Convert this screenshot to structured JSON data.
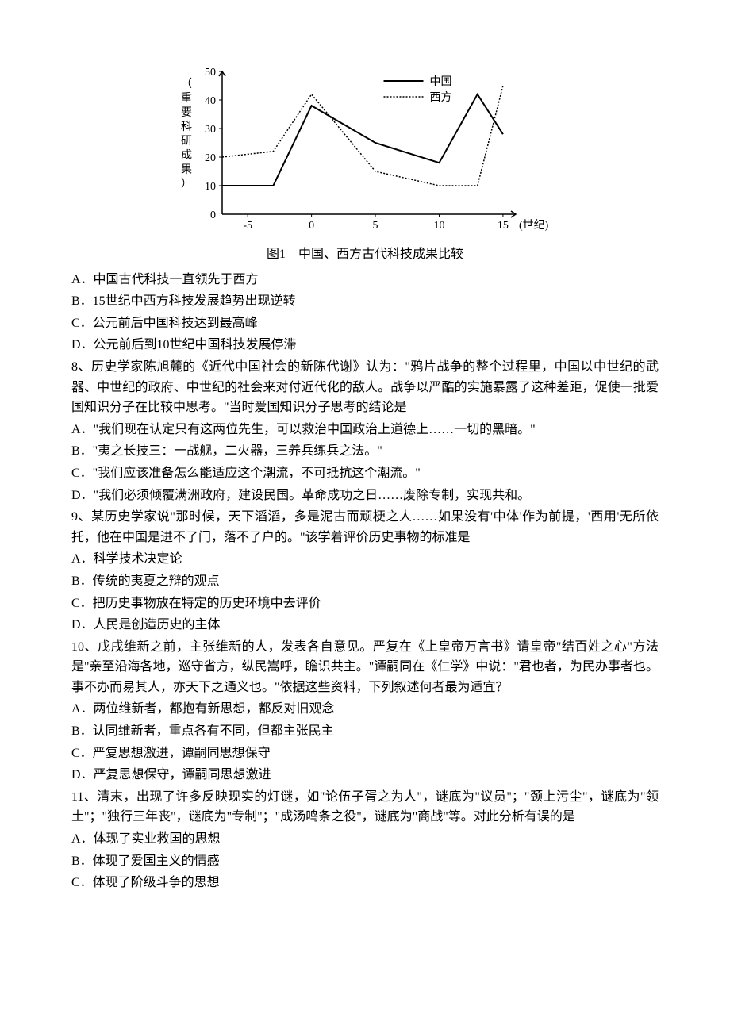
{
  "chart": {
    "type": "line",
    "axis_label_x": "(世纪)",
    "axis_label_y": "（重要科研成果）",
    "legend": [
      "中国",
      "西方"
    ],
    "x_ticks": [
      -5,
      0,
      5,
      10,
      15
    ],
    "y_ticks": [
      0,
      10,
      20,
      30,
      40,
      50
    ],
    "series": {
      "china": {
        "label": "中国",
        "points": [
          [
            -7,
            10
          ],
          [
            -3,
            10
          ],
          [
            0,
            38
          ],
          [
            5,
            25
          ],
          [
            10,
            18
          ],
          [
            13,
            42
          ],
          [
            15,
            28
          ]
        ],
        "color": "#000",
        "dash": "none",
        "width": 2
      },
      "west": {
        "label": "西方",
        "points": [
          [
            -7,
            20
          ],
          [
            -3,
            22
          ],
          [
            0,
            42
          ],
          [
            5,
            15
          ],
          [
            10,
            10
          ],
          [
            13,
            10
          ],
          [
            15,
            45
          ]
        ],
        "color": "#000",
        "dash": "2,2",
        "width": 1.5
      }
    },
    "xlim": [
      -7,
      16
    ],
    "ylim": [
      0,
      50
    ],
    "grid_color": "#000",
    "background_color": "#ffffff",
    "font_size_axis": 14,
    "caption": "图1　中国、西方古代科技成果比较"
  },
  "q7": {
    "opts": {
      "A": "A．中国古代科技一直领先于西方",
      "B": "B．15世纪中西方科技发展趋势出现逆转",
      "C": "C．公元前后中国科技达到最高峰",
      "D": "D．公元前后到10世纪中国科技发展停滞"
    }
  },
  "q8": {
    "stem": "8、历史学家陈旭麓的《近代中国社会的新陈代谢》认为：\"鸦片战争的整个过程里，中国以中世纪的武器、中世纪的政府、中世纪的社会来对付近代化的敌人。战争以严酷的实施暴露了这种差距，促使一批爱国知识分子在比较中思考。\"当时爱国知识分子思考的结论是",
    "opts": {
      "A": "A．\"我们现在认定只有这两位先生，可以救治中国政治上道德上……一切的黑暗。\"",
      "B": "B．\"夷之长技三：一战舰，二火器，三养兵练兵之法。\"",
      "C": "C．\"我们应该准备怎么能适应这个潮流，不可抵抗这个潮流。\"",
      "D": "D．\"我们必须倾覆满洲政府，建设民国。革命成功之日……废除专制，实现共和。"
    }
  },
  "q9": {
    "stem": "9、某历史学家说\"那时候，天下滔滔，多是泥古而顽梗之人……如果没有'中体'作为前提，'西用'无所依托，他在中国是进不了门，落不了户的。\"该学着评价历史事物的标准是",
    "opts": {
      "A": "A．科学技术决定论",
      "B": "B．传统的夷夏之辩的观点",
      "C": "C．把历史事物放在特定的历史环境中去评价",
      "D": "D．人民是创造历史的主体"
    }
  },
  "q10": {
    "stem": "10、戊戌维新之前，主张维新的人，发表各自意见。严复在《上皇帝万言书》请皇帝\"结百姓之心\"方法是\"亲至沿海各地，巡守省方，纵民嵩呼，瞻识共主。\"谭嗣同在《仁学》中说：\"君也者，为民办事者也。事不办而易其人，亦天下之通义也。\"依据这些资料，下列叙述何者最为适宜？",
    "opts": {
      "A": "A．两位维新者，都抱有新思想，都反对旧观念",
      "B": "B．认同维新者，重点各有不同，但都主张民主",
      "C": "C．严复思想激进，谭嗣同思想保守",
      "D": "D．严复思想保守，谭嗣同思想激进"
    }
  },
  "q11": {
    "stem": "11、清末，出现了许多反映现实的灯谜，如\"论伍子胥之为人\"，谜底为\"议员\"；\"颈上污尘\"，谜底为\"领土\"；\"独行三年丧\"，谜底为\"专制\"；\"成汤鸣条之役\"，谜底为\"商战\"等。对此分析有误的是",
    "opts": {
      "A": "A．体现了实业救国的思想",
      "B": "B．体现了爱国主义的情感",
      "C": "C．体现了阶级斗争的思想"
    }
  }
}
